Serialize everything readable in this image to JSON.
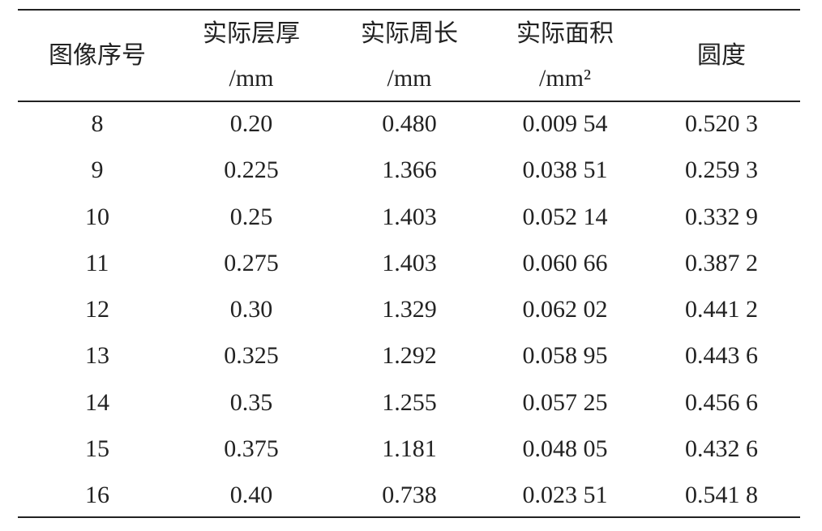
{
  "table": {
    "header": [
      {
        "line1": "图像序号"
      },
      {
        "line1": "实际层厚",
        "line2": "/mm"
      },
      {
        "line1": "实际周长",
        "line2": "/mm"
      },
      {
        "line1": "实际面积",
        "line2": "/mm²"
      },
      {
        "line1": "圆度"
      }
    ],
    "rows": [
      [
        "8",
        "0.20",
        "0.480",
        "0.009 54",
        "0.520 3"
      ],
      [
        "9",
        "0.225",
        "1.366",
        "0.038 51",
        "0.259 3"
      ],
      [
        "10",
        "0.25",
        "1.403",
        "0.052 14",
        "0.332 9"
      ],
      [
        "11",
        "0.275",
        "1.403",
        "0.060 66",
        "0.387 2"
      ],
      [
        "12",
        "0.30",
        "1.329",
        "0.062 02",
        "0.441 2"
      ],
      [
        "13",
        "0.325",
        "1.292",
        "0.058 95",
        "0.443 6"
      ],
      [
        "14",
        "0.35",
        "1.255",
        "0.057 25",
        "0.456 6"
      ],
      [
        "15",
        "0.375",
        "1.181",
        "0.048 05",
        "0.432 6"
      ],
      [
        "16",
        "0.40",
        "0.738",
        "0.023 51",
        "0.541 8"
      ]
    ]
  }
}
